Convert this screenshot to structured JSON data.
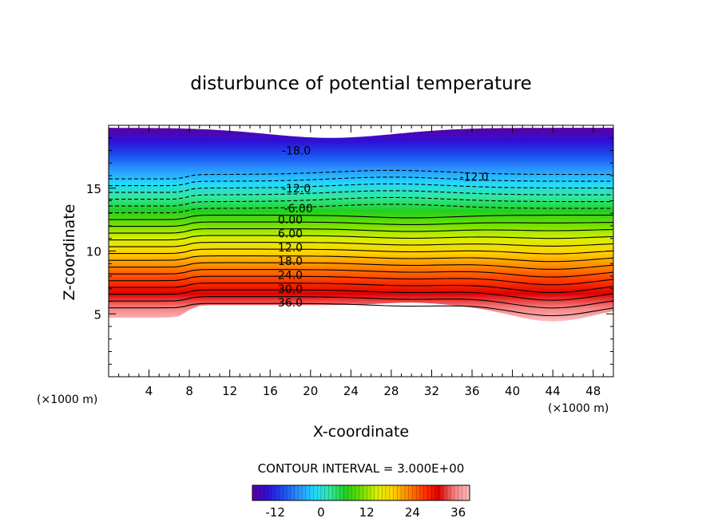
{
  "chart_data": {
    "type": "contour",
    "title": "disturbunce of potential temperature",
    "xlabel": "X-coordinate",
    "ylabel": "Z-coordinate",
    "x_unit_left": "(×1000 m)",
    "x_unit_right": "(×1000 m)",
    "xlim": [
      0,
      50
    ],
    "ylim": [
      0,
      20
    ],
    "x_ticks": [
      "4",
      "8",
      "12",
      "16",
      "20",
      "24",
      "28",
      "32",
      "36",
      "40",
      "44",
      "48"
    ],
    "x_tick_values": [
      4,
      8,
      12,
      16,
      20,
      24,
      28,
      32,
      36,
      40,
      44,
      48
    ],
    "y_ticks": [
      "5",
      "10",
      "15"
    ],
    "y_tick_values": [
      5,
      10,
      15
    ],
    "contour_interval_text": "CONTOUR INTERVAL = 3.000E+00",
    "contour_levels": [
      -18,
      -15,
      -12,
      -9,
      -6,
      -3,
      0,
      3,
      6,
      9,
      12,
      15,
      18,
      21,
      24,
      27,
      30,
      33,
      36,
      39
    ],
    "contour_labels": [
      {
        "text": "-18.0",
        "x": 18.6,
        "z": 18.0
      },
      {
        "text": "-12.0",
        "x": 18.6,
        "z": 15.0
      },
      {
        "text": "-12.0",
        "x": 36.2,
        "z": 15.9
      },
      {
        "text": "-6.00",
        "x": 18.8,
        "z": 13.4
      },
      {
        "text": "0.00",
        "x": 18.0,
        "z": 12.5
      },
      {
        "text": "6.00",
        "x": 18.0,
        "z": 11.4
      },
      {
        "text": "12.0",
        "x": 18.0,
        "z": 10.3
      },
      {
        "text": "18.0",
        "x": 18.0,
        "z": 9.2
      },
      {
        "text": "24.0",
        "x": 18.0,
        "z": 8.1
      },
      {
        "text": "30.0",
        "x": 18.0,
        "z": 7.0
      },
      {
        "text": "36.0",
        "x": 18.0,
        "z": 5.9
      }
    ],
    "colorbar": {
      "min": -18,
      "max": 39,
      "tick_labels": [
        "-12",
        "0",
        "12",
        "24",
        "36"
      ],
      "tick_values": [
        -12,
        0,
        12,
        24,
        36
      ]
    },
    "colormap": [
      "#5a00a0",
      "#2f10d8",
      "#1a50f0",
      "#2b94ff",
      "#22d8ff",
      "#30e8a0",
      "#20d020",
      "#6ee000",
      "#d8ef00",
      "#ffd400",
      "#ff8a00",
      "#ff3a00",
      "#e00000",
      "#f48080",
      "#ffc0c0"
    ]
  }
}
